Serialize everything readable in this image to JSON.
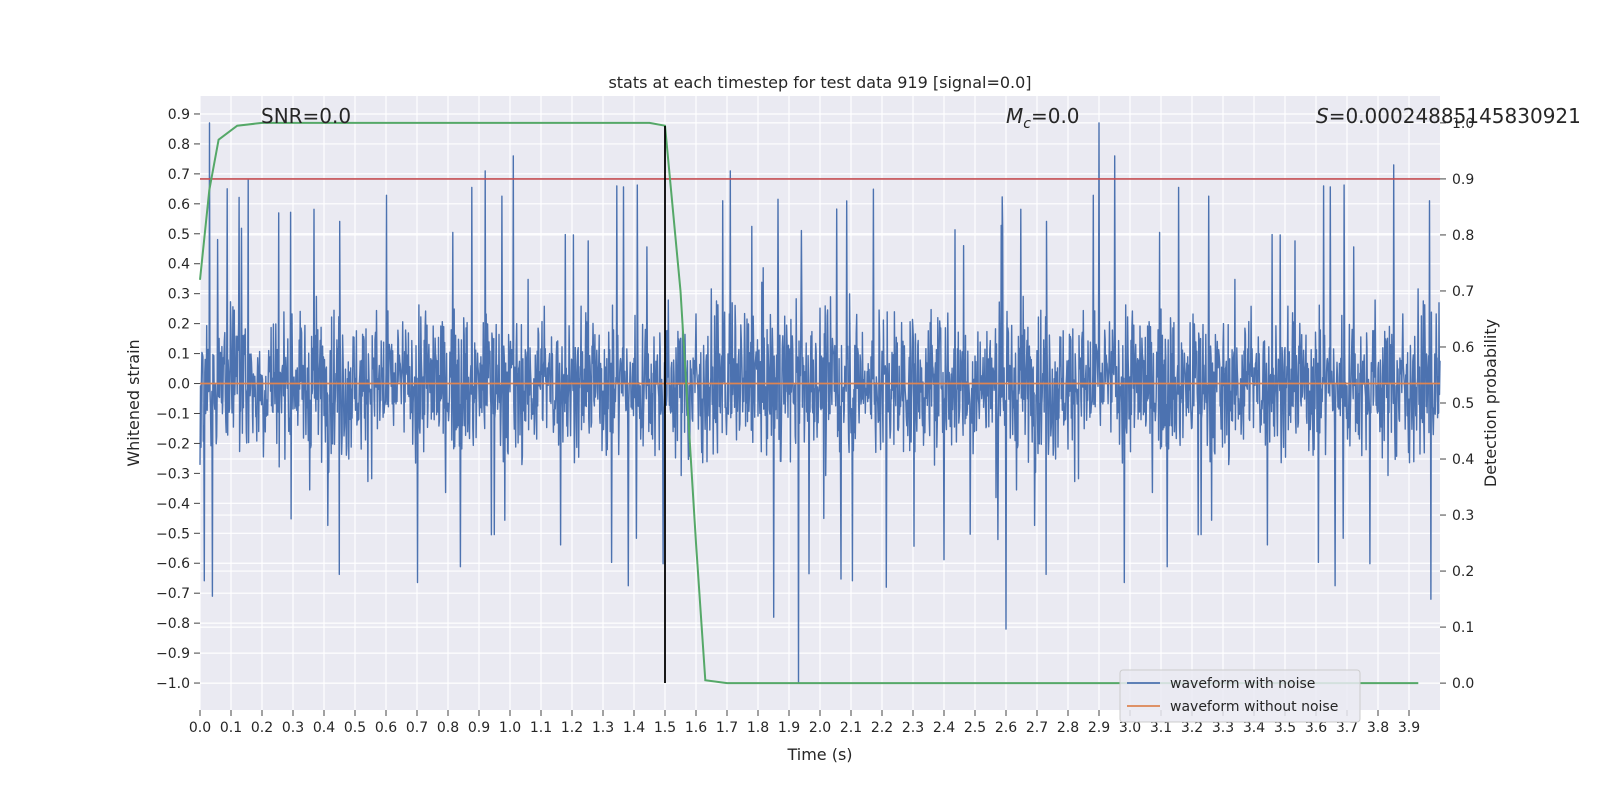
{
  "chart_data": {
    "type": "line",
    "title": "stats at each timestep for test data 919 [signal=0.0]",
    "xlabel": "Time (s)",
    "ylabel": "Whitened strain",
    "ylabel_right": "Detection probability",
    "xlim": [
      0.0,
      4.0
    ],
    "ylim": [
      -1.09,
      0.96
    ],
    "ylim_right": [
      -0.048,
      1.048
    ],
    "x_ticks": [
      "0.0",
      "0.1",
      "0.2",
      "0.3",
      "0.4",
      "0.5",
      "0.6",
      "0.7",
      "0.8",
      "0.9",
      "1.0",
      "1.1",
      "1.2",
      "1.3",
      "1.4",
      "1.5",
      "1.6",
      "1.7",
      "1.8",
      "1.9",
      "2.0",
      "2.1",
      "2.2",
      "2.3",
      "2.4",
      "2.5",
      "2.6",
      "2.7",
      "2.8",
      "2.9",
      "3.0",
      "3.1",
      "3.2",
      "3.3",
      "3.4",
      "3.5",
      "3.6",
      "3.7",
      "3.8",
      "3.9"
    ],
    "y_ticks": [
      "0.9",
      "0.8",
      "0.7",
      "0.6",
      "0.5",
      "0.4",
      "0.3",
      "0.2",
      "0.1",
      "0.0",
      "−0.1",
      "−0.2",
      "−0.3",
      "−0.4",
      "−0.5",
      "−0.6",
      "−0.7",
      "−0.8",
      "−0.9",
      "−1.0"
    ],
    "y_ticks_right": [
      "1.0",
      "0.9",
      "0.8",
      "0.7",
      "0.6",
      "0.5",
      "0.4",
      "0.3",
      "0.2",
      "0.1",
      "0.0"
    ],
    "grid": true,
    "legend_position": "lower-right",
    "annotations": {
      "snr": "SNR=0.0",
      "mc_symbol": "M",
      "mc_sub": "c",
      "mc_value": "=0.0",
      "s_symbol": "S",
      "s_value": "=0.00024885145830921"
    },
    "series": [
      {
        "name": "waveform with noise",
        "color": "#4c72b0",
        "description": "noisy whitened strain, roughly within [-0.7, 0.7] with spikes",
        "spikes": [
          {
            "x": 0.03,
            "y": 0.87
          },
          {
            "x": 0.04,
            "y": -0.71
          },
          {
            "x": 0.92,
            "y": 0.71
          },
          {
            "x": 1.01,
            "y": 0.76
          },
          {
            "x": 1.71,
            "y": 0.71
          },
          {
            "x": 1.85,
            "y": -0.78
          },
          {
            "x": 1.93,
            "y": -1.0
          },
          {
            "x": 2.6,
            "y": -0.82
          },
          {
            "x": 2.9,
            "y": 0.87
          },
          {
            "x": 2.95,
            "y": 0.76
          },
          {
            "x": 3.85,
            "y": 0.73
          },
          {
            "x": 3.97,
            "y": -0.72
          }
        ]
      },
      {
        "name": "waveform without noise",
        "color": "#dd8452",
        "y_constant": 0.0
      },
      {
        "name": "detection probability",
        "color": "#55a868",
        "axis": "right",
        "points": [
          [
            0.0,
            0.72
          ],
          [
            0.03,
            0.88
          ],
          [
            0.06,
            0.97
          ],
          [
            0.12,
            0.995
          ],
          [
            0.2,
            1.0
          ],
          [
            1.45,
            1.0
          ],
          [
            1.5,
            0.995
          ],
          [
            1.55,
            0.7
          ],
          [
            1.6,
            0.25
          ],
          [
            1.63,
            0.005
          ],
          [
            1.7,
            0.0
          ],
          [
            3.93,
            0.0
          ]
        ]
      },
      {
        "name": "threshold",
        "color": "#c44e52",
        "axis": "right",
        "y_constant": 0.9
      },
      {
        "name": "marker",
        "color": "#000000",
        "x_constant": 1.5,
        "y_range": [
          -1.0,
          0.86
        ]
      }
    ]
  }
}
